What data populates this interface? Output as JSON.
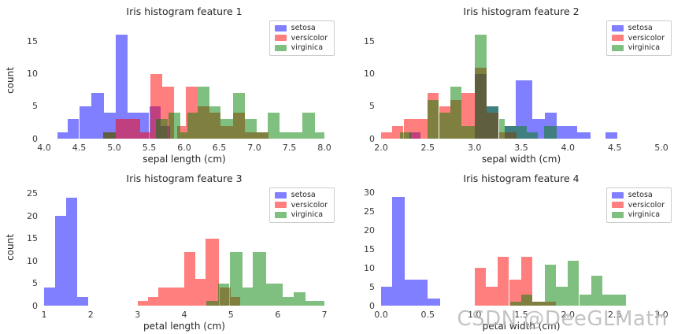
{
  "watermark": "CSDN @DeeGLMath",
  "palette": {
    "setosa": "rgba(0,0,255,0.5)",
    "versicolor": "rgba(255,0,0,0.5)",
    "virginica": "rgba(0,128,0,0.5)"
  },
  "chart_data": [
    {
      "type": "histogram",
      "title": "Iris histogram feature 1",
      "xlabel": "sepal length (cm)",
      "ylabel": "count",
      "x_range": [
        4.0,
        8.0
      ],
      "y_display_max": 18,
      "grid": false,
      "legend_position": "upper right",
      "x_ticks": {
        "values": [
          4.0,
          4.5,
          5.0,
          5.5,
          6.0,
          6.5,
          7.0,
          7.5,
          8.0
        ],
        "labels": [
          "4.0",
          "4.5",
          "5.0",
          "5.5",
          "6.0",
          "6.5",
          "7.0",
          "7.5",
          "8.0"
        ]
      },
      "y_ticks": {
        "values": [
          0,
          5,
          10,
          15
        ],
        "labels": [
          "0",
          "5",
          "10",
          "15"
        ]
      },
      "series": [
        {
          "name": "setosa",
          "color": "rgba(0,0,255,0.5)",
          "bins": [
            [
              4.19,
              4.34,
              1
            ],
            [
              4.34,
              4.5,
              3
            ],
            [
              4.5,
              4.67,
              5
            ],
            [
              4.67,
              4.85,
              7
            ],
            [
              4.85,
              5.02,
              4
            ],
            [
              5.02,
              5.19,
              16
            ],
            [
              5.19,
              5.5,
              4
            ],
            [
              5.5,
              5.66,
              5
            ],
            [
              5.66,
              5.8,
              2
            ]
          ]
        },
        {
          "name": "versicolor",
          "color": "rgba(255,0,0,0.5)",
          "bins": [
            [
              4.84,
              5.02,
              1
            ],
            [
              5.02,
              5.37,
              3
            ],
            [
              5.37,
              5.52,
              1
            ],
            [
              5.52,
              5.69,
              10
            ],
            [
              5.69,
              5.86,
              8
            ],
            [
              5.9,
              6.02,
              2
            ],
            [
              6.02,
              6.19,
              8
            ],
            [
              6.19,
              6.36,
              5
            ],
            [
              6.36,
              6.52,
              4
            ],
            [
              6.52,
              6.7,
              2
            ],
            [
              6.7,
              6.87,
              4
            ],
            [
              6.87,
              7.2,
              1
            ]
          ]
        },
        {
          "name": "virginica",
          "color": "rgba(0,128,0,0.5)",
          "bins": [
            [
              4.84,
              5.02,
              1
            ],
            [
              5.6,
              5.77,
              3
            ],
            [
              5.77,
              5.94,
              4
            ],
            [
              5.94,
              6.04,
              1
            ],
            [
              6.04,
              6.19,
              4
            ],
            [
              6.19,
              6.36,
              8
            ],
            [
              6.36,
              6.52,
              5
            ],
            [
              6.52,
              6.7,
              3
            ],
            [
              6.7,
              6.87,
              7
            ],
            [
              6.87,
              7.03,
              3
            ],
            [
              7.03,
              7.19,
              1
            ],
            [
              7.19,
              7.36,
              4
            ],
            [
              7.36,
              7.69,
              1
            ],
            [
              7.69,
              7.87,
              4
            ],
            [
              7.87,
              8.0,
              1
            ]
          ]
        }
      ]
    },
    {
      "type": "histogram",
      "title": "Iris histogram feature 2",
      "xlabel": "sepal width (cm)",
      "ylabel": null,
      "x_range": [
        2.0,
        5.0
      ],
      "y_display_max": 18,
      "grid": false,
      "legend_position": "upper right",
      "x_ticks": {
        "values": [
          2.0,
          2.5,
          3.0,
          3.5,
          4.0,
          4.5,
          5.0
        ],
        "labels": [
          "2.0",
          "2.5",
          "3.0",
          "3.5",
          "4.0",
          "4.5",
          "5.0"
        ]
      },
      "y_ticks": {
        "values": [
          0,
          5,
          10,
          15
        ],
        "labels": [
          "0",
          "5",
          "10",
          "15"
        ]
      },
      "series": [
        {
          "name": "setosa",
          "color": "rgba(0,0,255,0.5)",
          "bins": [
            [
              2.3,
              2.42,
              1
            ],
            [
              3.0,
              3.13,
              10
            ],
            [
              3.13,
              3.26,
              5
            ],
            [
              3.32,
              3.44,
              2
            ],
            [
              3.44,
              3.62,
              9
            ],
            [
              3.62,
              3.75,
              3
            ],
            [
              3.75,
              3.88,
              4
            ],
            [
              3.88,
              4.1,
              2
            ],
            [
              4.1,
              4.24,
              1
            ],
            [
              4.4,
              4.53,
              1
            ]
          ]
        },
        {
          "name": "versicolor",
          "color": "rgba(255,0,0,0.5)",
          "bins": [
            [
              2.0,
              2.12,
              1
            ],
            [
              2.12,
              2.24,
              2
            ],
            [
              2.24,
              2.5,
              3
            ],
            [
              2.5,
              2.62,
              7
            ],
            [
              2.62,
              2.74,
              5
            ],
            [
              2.74,
              2.86,
              6
            ],
            [
              2.86,
              3.0,
              7
            ],
            [
              3.0,
              3.13,
              11
            ],
            [
              3.13,
              3.26,
              4
            ],
            [
              3.26,
              3.45,
              1
            ]
          ]
        },
        {
          "name": "virginica",
          "color": "rgba(0,128,0,0.5)",
          "bins": [
            [
              2.2,
              2.32,
              1
            ],
            [
              2.5,
              2.62,
              6
            ],
            [
              2.62,
              2.74,
              4
            ],
            [
              2.74,
              2.86,
              8
            ],
            [
              2.86,
              3.0,
              2
            ],
            [
              3.0,
              3.13,
              16
            ],
            [
              3.13,
              3.26,
              5
            ],
            [
              3.26,
              3.32,
              3
            ],
            [
              3.32,
              3.56,
              2
            ],
            [
              3.56,
              3.68,
              1
            ],
            [
              3.74,
              3.88,
              2
            ]
          ]
        }
      ]
    },
    {
      "type": "histogram",
      "title": "Iris histogram feature 3",
      "xlabel": "petal length (cm)",
      "ylabel": "count",
      "x_range": [
        1.0,
        7.0
      ],
      "y_display_max": 26,
      "grid": false,
      "legend_position": "upper right",
      "x_ticks": {
        "values": [
          1,
          2,
          3,
          4,
          5,
          6,
          7
        ],
        "labels": [
          "1",
          "2",
          "3",
          "4",
          "5",
          "6",
          "7"
        ]
      },
      "y_ticks": {
        "values": [
          0,
          5,
          10,
          15,
          20,
          25
        ],
        "labels": [
          "0",
          "5",
          "10",
          "15",
          "20",
          "25"
        ]
      },
      "series": [
        {
          "name": "setosa",
          "color": "rgba(0,0,255,0.5)",
          "bins": [
            [
              1.0,
              1.24,
              4
            ],
            [
              1.24,
              1.47,
              20
            ],
            [
              1.47,
              1.71,
              24
            ],
            [
              1.71,
              1.95,
              2
            ]
          ]
        },
        {
          "name": "versicolor",
          "color": "rgba(255,0,0,0.5)",
          "bins": [
            [
              3.0,
              3.22,
              1
            ],
            [
              3.22,
              3.44,
              2
            ],
            [
              3.44,
              4.0,
              4
            ],
            [
              4.0,
              4.24,
              12
            ],
            [
              4.24,
              4.46,
              6
            ],
            [
              4.46,
              4.75,
              15
            ],
            [
              4.75,
              5.0,
              4
            ],
            [
              5.0,
              5.2,
              2
            ]
          ]
        },
        {
          "name": "virginica",
          "color": "rgba(0,128,0,0.5)",
          "bins": [
            [
              4.47,
              4.72,
              1
            ],
            [
              4.72,
              4.97,
              5
            ],
            [
              4.97,
              5.24,
              12
            ],
            [
              5.24,
              5.46,
              4
            ],
            [
              5.46,
              5.75,
              12
            ],
            [
              5.75,
              6.1,
              5
            ],
            [
              6.1,
              6.35,
              2
            ],
            [
              6.35,
              6.6,
              3
            ],
            [
              6.6,
              7.0,
              1
            ]
          ]
        }
      ]
    },
    {
      "type": "histogram",
      "title": "Iris histogram feature 4",
      "xlabel": "petal width (cm)",
      "ylabel": null,
      "x_range": [
        0.0,
        3.0
      ],
      "y_display_max": 31,
      "grid": false,
      "legend_position": "upper right",
      "x_ticks": {
        "values": [
          0.0,
          0.5,
          1.0,
          1.5,
          2.0,
          2.5,
          3.0
        ],
        "labels": [
          "0.0",
          "0.5",
          "1.0",
          "1.5",
          "2.0",
          "2.5",
          "3.0"
        ]
      },
      "y_ticks": {
        "values": [
          0,
          5,
          10,
          15,
          20,
          25,
          30
        ],
        "labels": [
          "0",
          "5",
          "10",
          "15",
          "20",
          "25",
          "30"
        ]
      },
      "series": [
        {
          "name": "setosa",
          "color": "rgba(0,0,255,0.5)",
          "bins": [
            [
              0.0,
              0.12,
              5
            ],
            [
              0.12,
              0.25,
              29
            ],
            [
              0.25,
              0.5,
              7
            ],
            [
              0.5,
              0.63,
              2
            ]
          ]
        },
        {
          "name": "versicolor",
          "color": "rgba(255,0,0,0.5)",
          "bins": [
            [
              1.0,
              1.12,
              10
            ],
            [
              1.12,
              1.25,
              5
            ],
            [
              1.25,
              1.37,
              13
            ],
            [
              1.37,
              1.5,
              7
            ],
            [
              1.5,
              1.62,
              13
            ],
            [
              1.62,
              1.87,
              1
            ]
          ]
        },
        {
          "name": "virginica",
          "color": "rgba(0,128,0,0.5)",
          "bins": [
            [
              1.38,
              1.5,
              1
            ],
            [
              1.5,
              1.62,
              3
            ],
            [
              1.62,
              1.75,
              1
            ],
            [
              1.75,
              1.87,
              11
            ],
            [
              1.87,
              2.0,
              5
            ],
            [
              2.0,
              2.12,
              12
            ],
            [
              2.12,
              2.25,
              3
            ],
            [
              2.25,
              2.37,
              8
            ],
            [
              2.37,
              2.62,
              3
            ]
          ]
        }
      ]
    }
  ]
}
